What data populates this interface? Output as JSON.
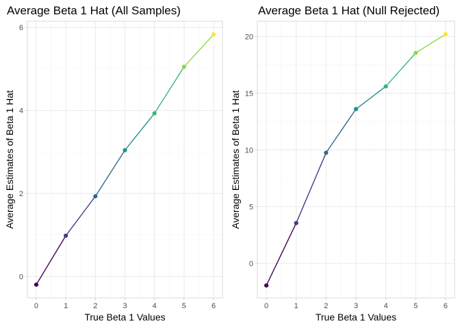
{
  "colors": {
    "viridis": [
      "#440154",
      "#443A83",
      "#31688E",
      "#21908C",
      "#35B779",
      "#8FD744",
      "#FDE725"
    ]
  },
  "chart_data": [
    {
      "type": "line",
      "title": "Average Beta 1 Hat (All Samples)",
      "xlabel": "True Beta 1 Values",
      "ylabel": "Average Estimates of Beta 1 Hat",
      "x": [
        0,
        1,
        2,
        3,
        4,
        5,
        6
      ],
      "y": [
        -0.2,
        0.98,
        1.93,
        3.04,
        3.93,
        5.05,
        5.83
      ],
      "xlim": [
        -0.3,
        6.3
      ],
      "ylim": [
        -0.52,
        6.15
      ],
      "xticks": [
        0,
        1,
        2,
        3,
        4,
        5,
        6
      ],
      "yticks": [
        0,
        2,
        4,
        6
      ],
      "grid": true,
      "legend": "none"
    },
    {
      "type": "line",
      "title": "Average Beta 1 Hat (Null Rejected)",
      "xlabel": "True Beta 1 Values",
      "ylabel": "Average Estimates of Beta 1 Hat",
      "x": [
        0,
        1,
        2,
        3,
        4,
        5,
        6
      ],
      "y": [
        -1.95,
        3.55,
        9.75,
        13.6,
        15.6,
        18.55,
        20.2
      ],
      "xlim": [
        -0.3,
        6.3
      ],
      "ylim": [
        -3.05,
        21.35
      ],
      "xticks": [
        0,
        1,
        2,
        3,
        4,
        5,
        6
      ],
      "yticks": [
        0,
        5,
        10,
        15,
        20
      ],
      "grid": true,
      "legend": "none"
    }
  ]
}
